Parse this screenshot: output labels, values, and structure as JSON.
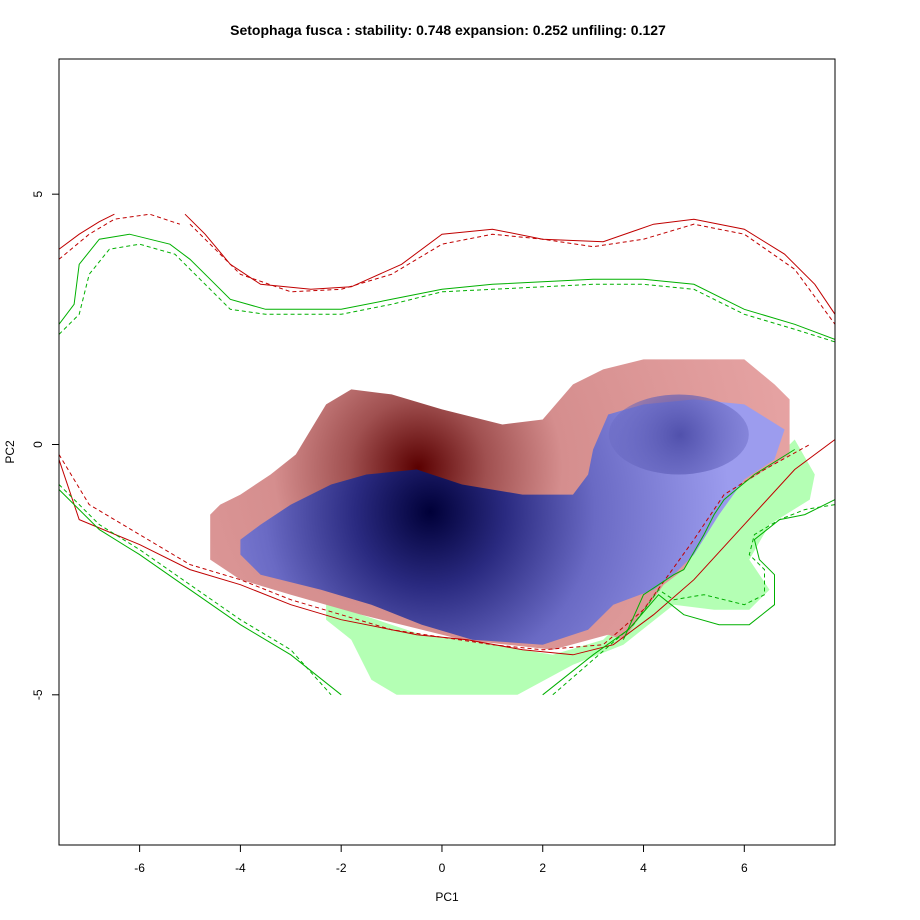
{
  "chart_data": {
    "type": "niche-overlap",
    "title": "Setophaga fusca : stability: 0.748 expansion: 0.252 unfiling: 0.127",
    "xlabel": "PC1",
    "ylabel": "PC2",
    "xlim": [
      -7.6,
      7.8
    ],
    "ylim": [
      -8.0,
      7.7
    ],
    "x_ticks": [
      -6,
      -4,
      -2,
      0,
      2,
      4,
      6
    ],
    "y_ticks": [
      5,
      0,
      -5
    ],
    "tick_labels_x": [
      "-6",
      "-4",
      "-2",
      "0",
      "2",
      "4",
      "6"
    ],
    "tick_labels_y": [
      "5",
      "0",
      "-5"
    ],
    "grid": false,
    "legend": "none",
    "colors": {
      "stability": "#8080e0",
      "stability_dense": "#000040",
      "unfilling": "#e09a9a",
      "unfilling_dense": "#600000",
      "expansion": "#b4ffb4",
      "native_env": "#c00000",
      "invaded_env": "#00b000"
    },
    "regions": {
      "unfilling": [
        [
          -4.6,
          -1.4
        ],
        [
          -4.4,
          -1.2
        ],
        [
          -4.0,
          -1.0
        ],
        [
          -3.4,
          -0.6
        ],
        [
          -2.9,
          -0.2
        ],
        [
          -2.3,
          0.8
        ],
        [
          -1.8,
          1.1
        ],
        [
          -1.0,
          1.0
        ],
        [
          0.0,
          0.7
        ],
        [
          1.2,
          0.4
        ],
        [
          2.0,
          0.5
        ],
        [
          2.6,
          1.2
        ],
        [
          3.2,
          1.5
        ],
        [
          4.0,
          1.7
        ],
        [
          6.0,
          1.7
        ],
        [
          6.6,
          1.2
        ],
        [
          6.9,
          0.9
        ],
        [
          6.9,
          -0.2
        ],
        [
          5.8,
          -0.9
        ],
        [
          4.8,
          -2.5
        ],
        [
          4.4,
          -2.8
        ],
        [
          3.6,
          -3.9
        ],
        [
          3.3,
          -3.8
        ],
        [
          2.2,
          -4.1
        ],
        [
          0.4,
          -3.9
        ],
        [
          -1.6,
          -3.4
        ],
        [
          -3.0,
          -3.0
        ],
        [
          -4.0,
          -2.7
        ],
        [
          -4.6,
          -2.3
        ]
      ],
      "expansion": [
        [
          -2.3,
          -3.1
        ],
        [
          -1.6,
          -3.4
        ],
        [
          -0.4,
          -3.8
        ],
        [
          0.4,
          -3.9
        ],
        [
          2.2,
          -4.2
        ],
        [
          3.2,
          -3.9
        ],
        [
          4.0,
          -3.1
        ],
        [
          4.6,
          -2.6
        ],
        [
          5.6,
          -1.0
        ],
        [
          6.6,
          -0.3
        ],
        [
          7.0,
          0.1
        ],
        [
          7.4,
          -0.6
        ],
        [
          7.3,
          -1.1
        ],
        [
          6.5,
          -1.6
        ],
        [
          6.1,
          -2.3
        ],
        [
          6.5,
          -2.9
        ],
        [
          6.1,
          -3.3
        ],
        [
          5.4,
          -3.3
        ],
        [
          4.6,
          -3.2
        ],
        [
          3.6,
          -4.0
        ],
        [
          2.6,
          -4.4
        ],
        [
          1.5,
          -5.0
        ],
        [
          -0.9,
          -5.0
        ],
        [
          -1.4,
          -4.7
        ],
        [
          -1.8,
          -3.9
        ],
        [
          -2.3,
          -3.5
        ]
      ],
      "stability": [
        [
          -4.0,
          -1.9
        ],
        [
          -3.6,
          -1.6
        ],
        [
          -3.0,
          -1.2
        ],
        [
          -2.2,
          -0.8
        ],
        [
          -1.5,
          -0.6
        ],
        [
          -0.5,
          -0.5
        ],
        [
          0.4,
          -0.8
        ],
        [
          1.6,
          -1.0
        ],
        [
          2.6,
          -1.0
        ],
        [
          2.9,
          -0.6
        ],
        [
          3.0,
          -0.1
        ],
        [
          3.3,
          0.6
        ],
        [
          4.0,
          0.8
        ],
        [
          5.0,
          0.9
        ],
        [
          6.0,
          0.8
        ],
        [
          6.8,
          0.3
        ],
        [
          6.6,
          -0.3
        ],
        [
          6.0,
          -0.7
        ],
        [
          5.5,
          -1.4
        ],
        [
          5.0,
          -2.2
        ],
        [
          4.6,
          -2.6
        ],
        [
          4.2,
          -2.9
        ],
        [
          3.4,
          -3.2
        ],
        [
          2.9,
          -3.7
        ],
        [
          2.0,
          -4.0
        ],
        [
          0.6,
          -3.9
        ],
        [
          -0.4,
          -3.6
        ],
        [
          -1.4,
          -3.2
        ],
        [
          -2.4,
          -2.9
        ],
        [
          -3.6,
          -2.6
        ],
        [
          -4.0,
          -2.2
        ]
      ],
      "native_density_peak": [
        -0.2,
        -1.4
      ],
      "invaded_density_peak": [
        4.7,
        0.2
      ]
    },
    "contours": {
      "native_solid": [
        [
          [
            -7.6,
            3.9
          ],
          [
            -7.2,
            4.2
          ],
          [
            -6.8,
            4.45
          ],
          [
            -6.5,
            4.6
          ]
        ],
        [
          [
            -5.1,
            4.6
          ],
          [
            -4.7,
            4.2
          ],
          [
            -4.2,
            3.6
          ],
          [
            -3.6,
            3.2
          ],
          [
            -2.6,
            3.1
          ],
          [
            -1.8,
            3.15
          ],
          [
            -0.8,
            3.6
          ],
          [
            0.0,
            4.2
          ],
          [
            1.0,
            4.3
          ],
          [
            2.0,
            4.1
          ],
          [
            3.2,
            4.05
          ],
          [
            4.2,
            4.4
          ],
          [
            5.0,
            4.5
          ],
          [
            6.0,
            4.3
          ],
          [
            6.8,
            3.8
          ],
          [
            7.4,
            3.2
          ],
          [
            7.8,
            2.6
          ]
        ],
        [
          [
            -7.6,
            -0.3
          ],
          [
            -7.2,
            -1.5
          ],
          [
            -6.0,
            -2.0
          ],
          [
            -5.0,
            -2.5
          ],
          [
            -4.0,
            -2.8
          ],
          [
            -3.0,
            -3.2
          ],
          [
            -2.0,
            -3.5
          ],
          [
            -0.5,
            -3.8
          ],
          [
            0.5,
            -3.9
          ],
          [
            1.6,
            -4.1
          ],
          [
            2.6,
            -4.2
          ],
          [
            3.4,
            -4.0
          ],
          [
            4.2,
            -3.4
          ],
          [
            5.0,
            -2.7
          ],
          [
            6.0,
            -1.6
          ],
          [
            7.0,
            -0.5
          ],
          [
            7.8,
            0.1
          ]
        ]
      ],
      "native_dashed": [
        [
          [
            -7.6,
            3.7
          ],
          [
            -7.0,
            4.2
          ],
          [
            -6.5,
            4.5
          ],
          [
            -5.8,
            4.6
          ],
          [
            -5.2,
            4.4
          ]
        ],
        [
          [
            -5.0,
            4.4
          ],
          [
            -4.5,
            3.9
          ],
          [
            -4.0,
            3.4
          ],
          [
            -3.0,
            3.05
          ],
          [
            -2.0,
            3.1
          ],
          [
            -1.0,
            3.4
          ],
          [
            0.0,
            4.0
          ],
          [
            1.0,
            4.2
          ],
          [
            2.0,
            4.1
          ],
          [
            3.0,
            3.95
          ],
          [
            4.0,
            4.1
          ],
          [
            5.0,
            4.4
          ],
          [
            6.0,
            4.2
          ],
          [
            7.0,
            3.5
          ],
          [
            7.8,
            2.4
          ]
        ],
        [
          [
            -7.6,
            -0.2
          ],
          [
            -7.0,
            -1.2
          ],
          [
            -6.0,
            -1.8
          ],
          [
            -5.0,
            -2.4
          ],
          [
            -4.0,
            -2.7
          ],
          [
            -3.0,
            -3.1
          ],
          [
            -2.0,
            -3.4
          ],
          [
            -1.0,
            -3.7
          ],
          [
            0.0,
            -3.85
          ],
          [
            1.0,
            -4.0
          ],
          [
            2.0,
            -4.1
          ],
          [
            3.2,
            -4.0
          ],
          [
            4.0,
            -3.3
          ],
          [
            5.0,
            -1.9
          ],
          [
            5.6,
            -1.0
          ],
          [
            6.4,
            -0.5
          ],
          [
            7.3,
            0.0
          ]
        ]
      ],
      "invaded_solid": [
        [
          [
            -7.6,
            2.4
          ],
          [
            -7.3,
            2.8
          ],
          [
            -7.2,
            3.6
          ],
          [
            -6.8,
            4.1
          ],
          [
            -6.2,
            4.2
          ],
          [
            -5.4,
            4.0
          ],
          [
            -5.0,
            3.7
          ],
          [
            -4.6,
            3.3
          ],
          [
            -4.2,
            2.9
          ],
          [
            -3.5,
            2.7
          ],
          [
            -2.0,
            2.7
          ],
          [
            -1.0,
            2.9
          ],
          [
            0.0,
            3.1
          ],
          [
            1.0,
            3.2
          ],
          [
            2.0,
            3.25
          ],
          [
            3.0,
            3.3
          ],
          [
            4.0,
            3.3
          ],
          [
            5.0,
            3.2
          ],
          [
            6.0,
            2.7
          ],
          [
            7.0,
            2.4
          ],
          [
            7.8,
            2.1
          ]
        ],
        [
          [
            -7.6,
            -0.9
          ],
          [
            -6.8,
            -1.7
          ],
          [
            -6.0,
            -2.2
          ],
          [
            -5.0,
            -2.9
          ],
          [
            -4.0,
            -3.6
          ],
          [
            -3.0,
            -4.2
          ],
          [
            -2.0,
            -5.0
          ]
        ],
        [
          [
            2.0,
            -5.0
          ],
          [
            3.0,
            -4.2
          ],
          [
            3.7,
            -3.7
          ],
          [
            4.3,
            -3.0
          ],
          [
            4.8,
            -3.4
          ],
          [
            5.5,
            -3.6
          ],
          [
            6.1,
            -3.6
          ],
          [
            6.6,
            -3.2
          ],
          [
            6.6,
            -2.6
          ],
          [
            6.3,
            -2.3
          ],
          [
            6.2,
            -1.9
          ],
          [
            6.7,
            -1.5
          ],
          [
            7.2,
            -1.4
          ],
          [
            7.8,
            -1.1
          ]
        ],
        [
          [
            3.6,
            -3.9
          ],
          [
            4.0,
            -3.0
          ],
          [
            4.6,
            -2.6
          ],
          [
            4.8,
            -2.5
          ],
          [
            5.2,
            -1.8
          ],
          [
            5.4,
            -1.4
          ],
          [
            5.6,
            -1.1
          ],
          [
            6.2,
            -0.6
          ],
          [
            7.0,
            -0.1
          ]
        ]
      ],
      "invaded_dashed": [
        [
          [
            -7.6,
            2.2
          ],
          [
            -7.2,
            2.6
          ],
          [
            -7.0,
            3.4
          ],
          [
            -6.6,
            3.9
          ],
          [
            -6.0,
            4.0
          ],
          [
            -5.3,
            3.8
          ],
          [
            -4.8,
            3.3
          ],
          [
            -4.2,
            2.7
          ],
          [
            -3.5,
            2.6
          ],
          [
            -2.0,
            2.6
          ],
          [
            -1.0,
            2.8
          ],
          [
            0.0,
            3.05
          ],
          [
            1.0,
            3.1
          ],
          [
            2.0,
            3.15
          ],
          [
            3.0,
            3.2
          ],
          [
            4.0,
            3.2
          ],
          [
            5.0,
            3.1
          ],
          [
            6.0,
            2.6
          ],
          [
            7.0,
            2.3
          ],
          [
            7.8,
            2.05
          ]
        ],
        [
          [
            -7.6,
            -0.8
          ],
          [
            -6.8,
            -1.6
          ],
          [
            -6.0,
            -2.1
          ],
          [
            -5.0,
            -2.8
          ],
          [
            -4.0,
            -3.5
          ],
          [
            -3.0,
            -4.1
          ],
          [
            -2.2,
            -5.0
          ]
        ],
        [
          [
            2.2,
            -5.0
          ],
          [
            3.0,
            -4.3
          ],
          [
            3.8,
            -3.6
          ],
          [
            4.3,
            -2.9
          ],
          [
            4.6,
            -3.1
          ],
          [
            5.2,
            -3.0
          ],
          [
            6.0,
            -3.2
          ],
          [
            6.4,
            -3.0
          ],
          [
            6.4,
            -2.5
          ],
          [
            6.1,
            -2.2
          ],
          [
            6.2,
            -1.8
          ],
          [
            6.7,
            -1.5
          ],
          [
            7.2,
            -1.3
          ],
          [
            7.8,
            -1.2
          ]
        ]
      ]
    }
  }
}
